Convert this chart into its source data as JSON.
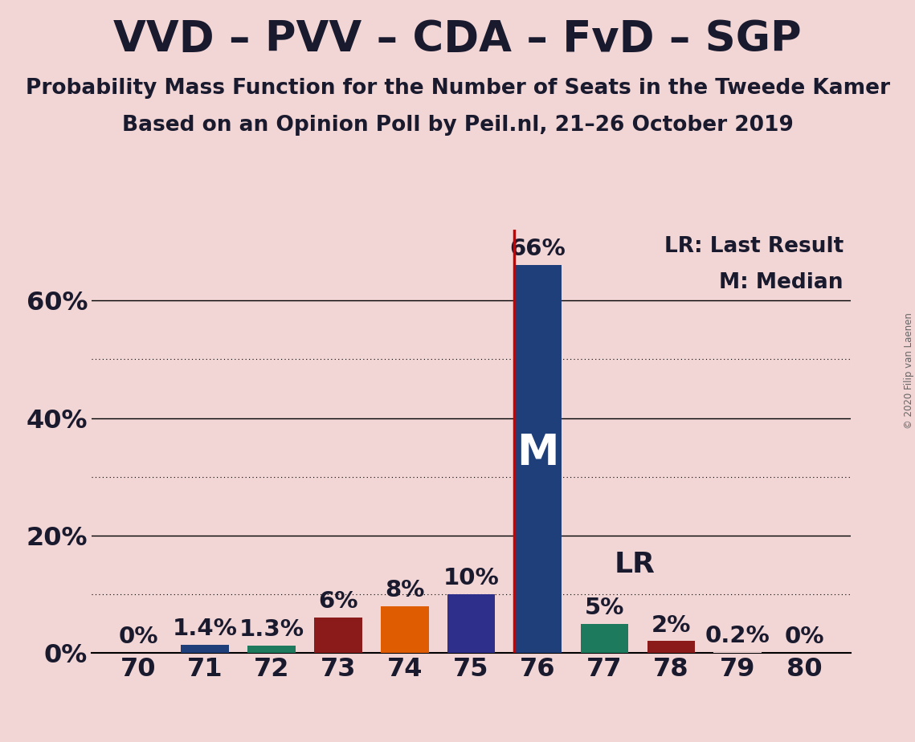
{
  "title": "VVD – PVV – CDA – FvD – SGP",
  "subtitle1": "Probability Mass Function for the Number of Seats in the Tweede Kamer",
  "subtitle2": "Based on an Opinion Poll by Peil.nl, 21–26 October 2019",
  "copyright": "© 2020 Filip van Laenen",
  "background_color": "#f2d5d5",
  "seats": [
    70,
    71,
    72,
    73,
    74,
    75,
    76,
    77,
    78,
    79,
    80
  ],
  "probabilities": [
    0.0,
    1.4,
    1.3,
    6.0,
    8.0,
    10.0,
    66.0,
    5.0,
    2.0,
    0.2,
    0.0
  ],
  "bar_colors": [
    "#f2d5d5",
    "#1e3f7a",
    "#1e7a5c",
    "#8b1a1a",
    "#e05c00",
    "#2e2e8b",
    "#1e3f7a",
    "#1e7a5c",
    "#8b1a1a",
    "#f2d5d5",
    "#f2d5d5"
  ],
  "labels": [
    "0%",
    "1.4%",
    "1.3%",
    "6%",
    "8%",
    "10%",
    "66%",
    "5%",
    "2%",
    "0.2%",
    "0%"
  ],
  "median_seat": 76,
  "last_result_seat": 76,
  "median_label": "M",
  "lr_label": "LR",
  "lr_legend": "LR: Last Result",
  "m_legend": "M: Median",
  "ylim_max": 72,
  "yticks": [
    0,
    20,
    40,
    60
  ],
  "dotted_yticks": [
    10,
    30,
    50
  ],
  "solid_ytick_labels": [
    "0%",
    "20%",
    "40%",
    "60%"
  ],
  "title_fontsize": 38,
  "subtitle_fontsize": 19,
  "axis_fontsize": 23,
  "bar_label_fontsize": 21,
  "annotation_fontsize": 26,
  "legend_fontsize": 19,
  "lr_line_color": "#cc0000",
  "plot_bg_color": "#f2d5d5",
  "text_color": "#1a1a2e"
}
